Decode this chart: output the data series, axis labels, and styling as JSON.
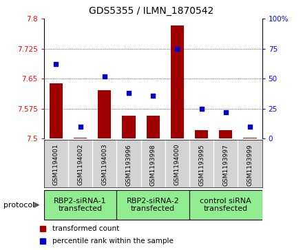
{
  "title": "GDS5355 / ILMN_1870542",
  "samples": [
    "GSM1194001",
    "GSM1194002",
    "GSM1194003",
    "GSM1193996",
    "GSM1193998",
    "GSM1194000",
    "GSM1193995",
    "GSM1193997",
    "GSM1193999"
  ],
  "bar_values": [
    7.638,
    7.503,
    7.622,
    7.558,
    7.558,
    7.784,
    7.522,
    7.522,
    7.503
  ],
  "dot_values": [
    62,
    10,
    52,
    38,
    36,
    75,
    25,
    22,
    10
  ],
  "ylim_left": [
    7.5,
    7.8
  ],
  "ylim_right": [
    0,
    100
  ],
  "yticks_left": [
    7.5,
    7.575,
    7.65,
    7.725,
    7.8
  ],
  "yticks_right": [
    0,
    25,
    50,
    75,
    100
  ],
  "bar_color": "#a00000",
  "dot_color": "#0000cc",
  "group_labels": [
    "RBP2-siRNA-1\ntransfected",
    "RBP2-siRNA-2\ntransfected",
    "control siRNA\ntransfected"
  ],
  "group_starts": [
    0,
    3,
    6
  ],
  "group_ends": [
    3,
    6,
    9
  ],
  "group_color": "#90ee90",
  "sample_box_color": "#d3d3d3",
  "protocol_label": "protocol",
  "legend_bar": "transformed count",
  "legend_dot": "percentile rank within the sample",
  "plot_bg": "#ffffff",
  "title_fontsize": 10,
  "tick_fontsize": 7.5,
  "label_fontsize": 7.5,
  "sample_fontsize": 6.5,
  "group_fontsize": 8
}
